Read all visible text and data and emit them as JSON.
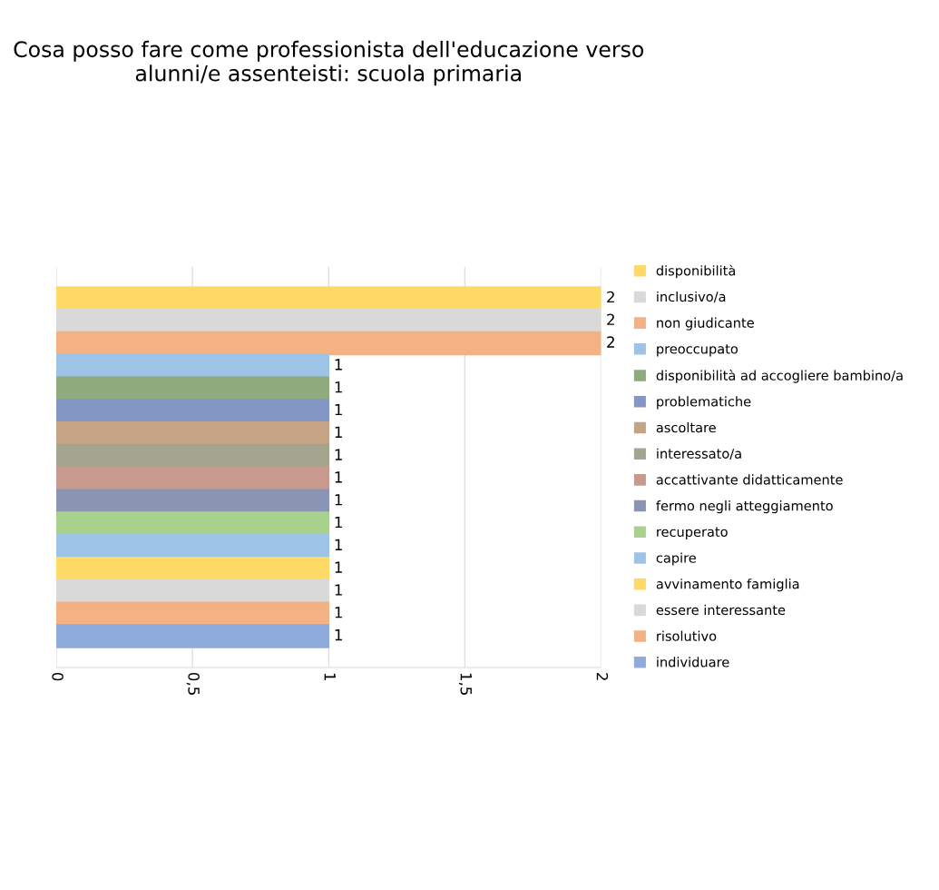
{
  "chart_data": {
    "type": "bar",
    "orientation": "horizontal",
    "title": "Cosa posso fare come professionista dell'educazione verso alunni/e assenteisti: scuola primaria",
    "categories": [
      null
    ],
    "series": [
      {
        "name": "disponibilità",
        "color": "#ffd966",
        "values": [
          2
        ]
      },
      {
        "name": "inclusivo/a",
        "color": "#d9d9d9",
        "values": [
          2
        ]
      },
      {
        "name": "non giudicante",
        "color": "#f4b183",
        "values": [
          2
        ]
      },
      {
        "name": "preoccupato",
        "color": "#9dc3e6",
        "values": [
          1
        ]
      },
      {
        "name": "disponibilità ad accogliere bambino/a",
        "color": "#8faa7c",
        "values": [
          1
        ]
      },
      {
        "name": "problematiche",
        "color": "#8497c4",
        "values": [
          1
        ]
      },
      {
        "name": "ascoltare",
        "color": "#c4a484",
        "values": [
          1
        ]
      },
      {
        "name": "interessato/a",
        "color": "#a5a58f",
        "values": [
          1
        ]
      },
      {
        "name": "accattivante didatticamente",
        "color": "#c89a8e",
        "values": [
          1
        ]
      },
      {
        "name": "fermo negli atteggiamento",
        "color": "#8a94b3",
        "values": [
          1
        ]
      },
      {
        "name": "recuperato",
        "color": "#a9d18e",
        "values": [
          1
        ]
      },
      {
        "name": "capire",
        "color": "#9dc3e6",
        "values": [
          1
        ]
      },
      {
        "name": "avvinamento famiglia",
        "color": "#ffd966",
        "values": [
          1
        ]
      },
      {
        "name": "essere interessante",
        "color": "#d9d9d9",
        "values": [
          1
        ]
      },
      {
        "name": "risolutivo",
        "color": "#f4b183",
        "values": [
          1
        ]
      },
      {
        "name": "individuare",
        "color": "#8faadc",
        "values": [
          1
        ]
      }
    ],
    "xlim": [
      0,
      2
    ],
    "xticks": [
      0,
      {
        "value": 0.5,
        "label": "0,5"
      },
      1,
      {
        "value": 1.5,
        "label": "1,5"
      },
      2
    ],
    "grid": "x",
    "legend": "right",
    "data_labels": true
  }
}
